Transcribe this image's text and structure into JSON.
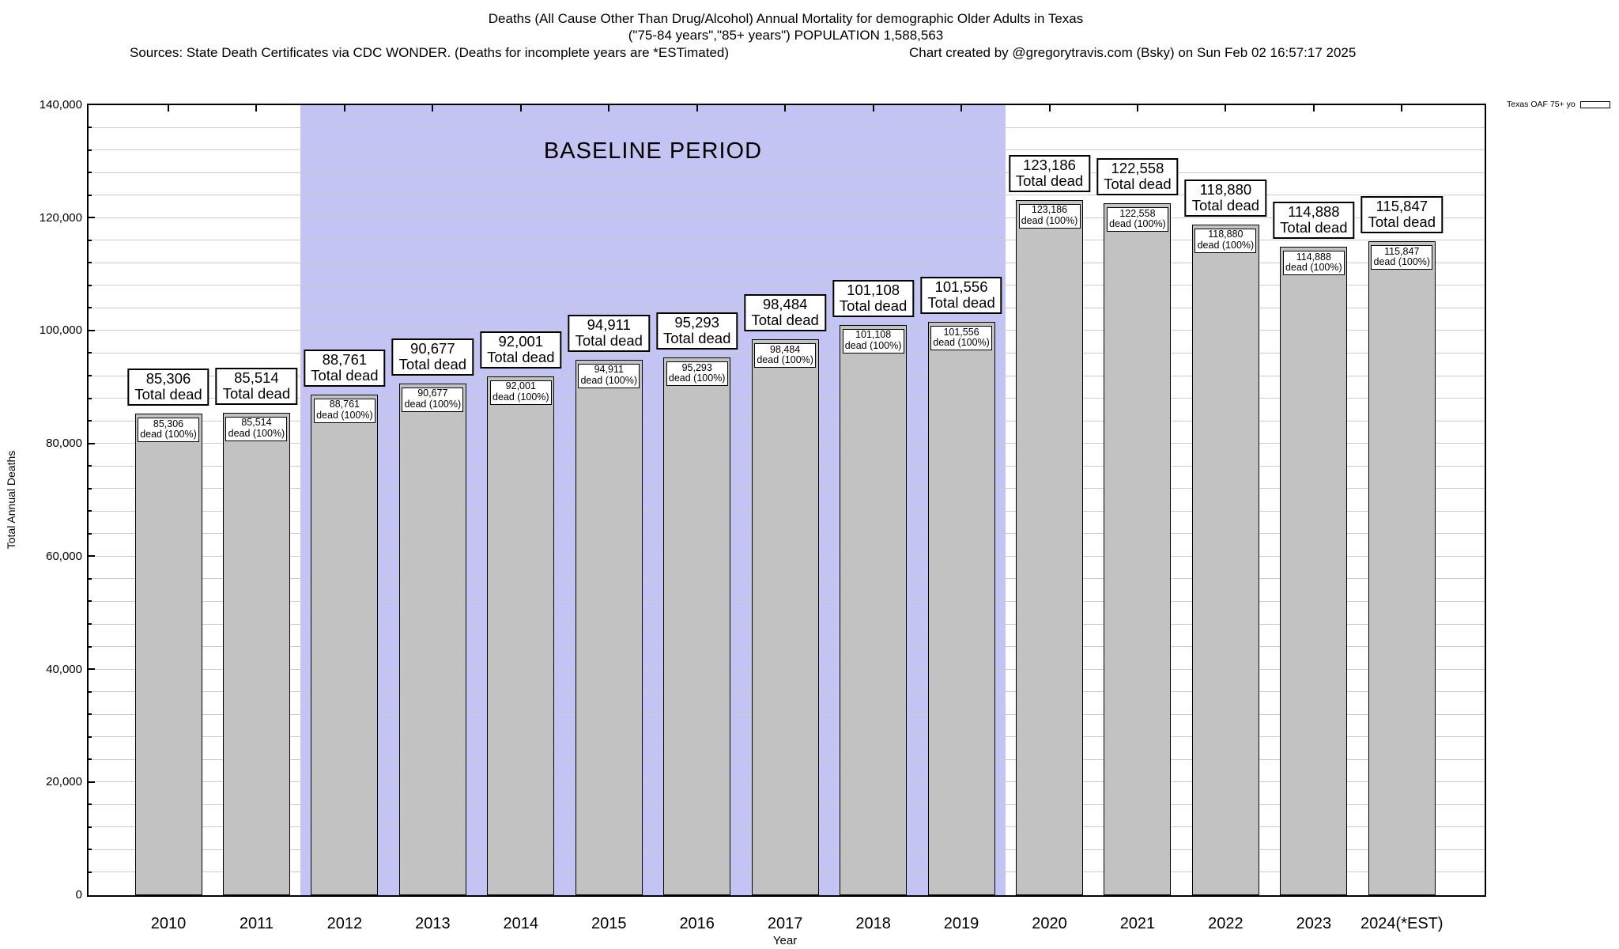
{
  "header": {
    "title_line1": "Deaths (All Cause Other Than Drug/Alcohol) Annual Mortality for demographic Older Adults in Texas",
    "title_line2": "(\"75-84 years\",\"85+ years\") POPULATION 1,588,563",
    "sources": "Sources: State Death Certificates via CDC WONDER. (Deaths for incomplete years are *ESTimated)",
    "credit": "Chart created by @gregorytravis.com (Bsky) on Sun Feb 02 16:57:17 2025"
  },
  "legend": {
    "label": "Texas OAF 75+ yo",
    "position": "top-right-outside"
  },
  "chart_data": {
    "type": "bar",
    "title": "Deaths (All Cause Other Than Drug/Alcohol) Annual Mortality for demographic Older Adults in Texas",
    "subtitle": "(\"75-84 years\",\"85+ years\") POPULATION 1,588,563",
    "categories": [
      "2010",
      "2011",
      "2012",
      "2013",
      "2014",
      "2015",
      "2016",
      "2017",
      "2018",
      "2019",
      "2020",
      "2021",
      "2022",
      "2023",
      "2024(*EST)"
    ],
    "values": [
      85306,
      85514,
      88761,
      90677,
      92001,
      94911,
      95293,
      98484,
      101108,
      101556,
      123186,
      122558,
      118880,
      114888,
      115847
    ],
    "bar_top_label_suffix": "Total dead",
    "bar_inner_label_suffix": "dead (100%)",
    "xlabel": "Year",
    "ylabel": "Total Annual Deaths",
    "ylim": [
      0,
      140000
    ],
    "y_major_tick_labels": [
      "0",
      "20,000",
      "40,000",
      "60,000",
      "80,000",
      "100,000",
      "120,000",
      "140,000"
    ],
    "y_major_step": 20000,
    "grid_step": 4000,
    "grid": "on",
    "annotation": {
      "text": "BASELINE PERIOD",
      "span_categories": [
        "2012",
        "2019"
      ]
    },
    "colors": {
      "bar_fill": "#c2c2c2",
      "bar_border": "#000000",
      "baseline_region": "#c4c4f4",
      "grid": "#cccccc"
    }
  }
}
